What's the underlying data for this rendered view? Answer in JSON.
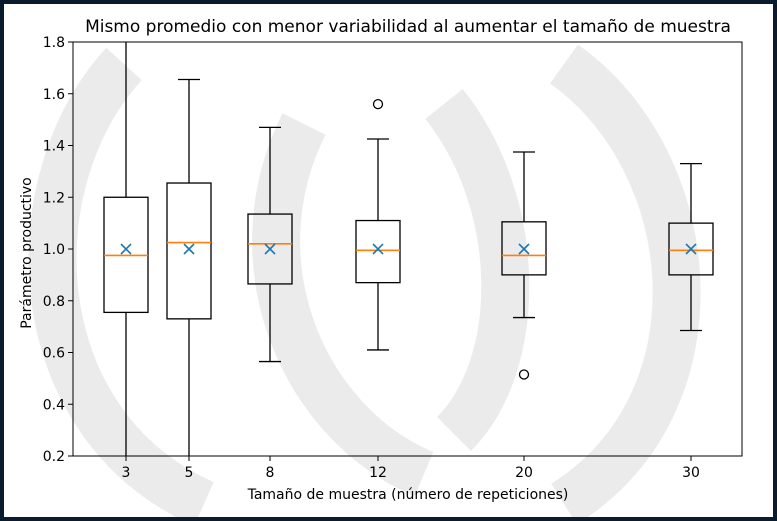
{
  "chart_data": {
    "type": "box",
    "title": "Mismo promedio con menor variabilidad al aumentar el tamaño de muestra",
    "xlabel": "Tamaño de muestra (número de repeticiones)",
    "ylabel": "Parámetro productivo",
    "ylim": [
      0.2,
      1.8
    ],
    "yticks": [
      "0.2",
      "0.4",
      "0.6",
      "0.8",
      "1.0",
      "1.2",
      "1.4",
      "1.6",
      "1.8"
    ],
    "grid": false,
    "colors": {
      "median": "#ff7f0e",
      "mean_marker": "#1f77b4",
      "box": "#000000",
      "frame_border": "#0b1b2e"
    },
    "boxes": [
      {
        "label": "3",
        "x": 3,
        "whisker_low": 0.2,
        "q1": 0.755,
        "median": 0.975,
        "q3": 1.2,
        "whisker_high": 1.8,
        "mean": 1.0,
        "outliers": []
      },
      {
        "label": "5",
        "x": 5,
        "whisker_low": 0.2,
        "q1": 0.73,
        "median": 1.025,
        "q3": 1.255,
        "whisker_high": 1.655,
        "mean": 1.0,
        "outliers": []
      },
      {
        "label": "8",
        "x": 8,
        "whisker_low": 0.565,
        "q1": 0.865,
        "median": 1.02,
        "q3": 1.135,
        "whisker_high": 1.47,
        "mean": 1.0,
        "outliers": []
      },
      {
        "label": "12",
        "x": 12,
        "whisker_low": 0.61,
        "q1": 0.87,
        "median": 0.995,
        "q3": 1.11,
        "whisker_high": 1.425,
        "mean": 1.0,
        "outliers": [
          1.56
        ]
      },
      {
        "label": "20",
        "x": 20,
        "whisker_low": 0.735,
        "q1": 0.9,
        "median": 0.975,
        "q3": 1.105,
        "whisker_high": 1.375,
        "mean": 1.0,
        "outliers": [
          0.515
        ]
      },
      {
        "label": "30",
        "x": 30,
        "whisker_low": 0.685,
        "q1": 0.9,
        "median": 0.995,
        "q3": 1.1,
        "whisker_high": 1.33,
        "mean": 1.0,
        "outliers": []
      }
    ]
  }
}
